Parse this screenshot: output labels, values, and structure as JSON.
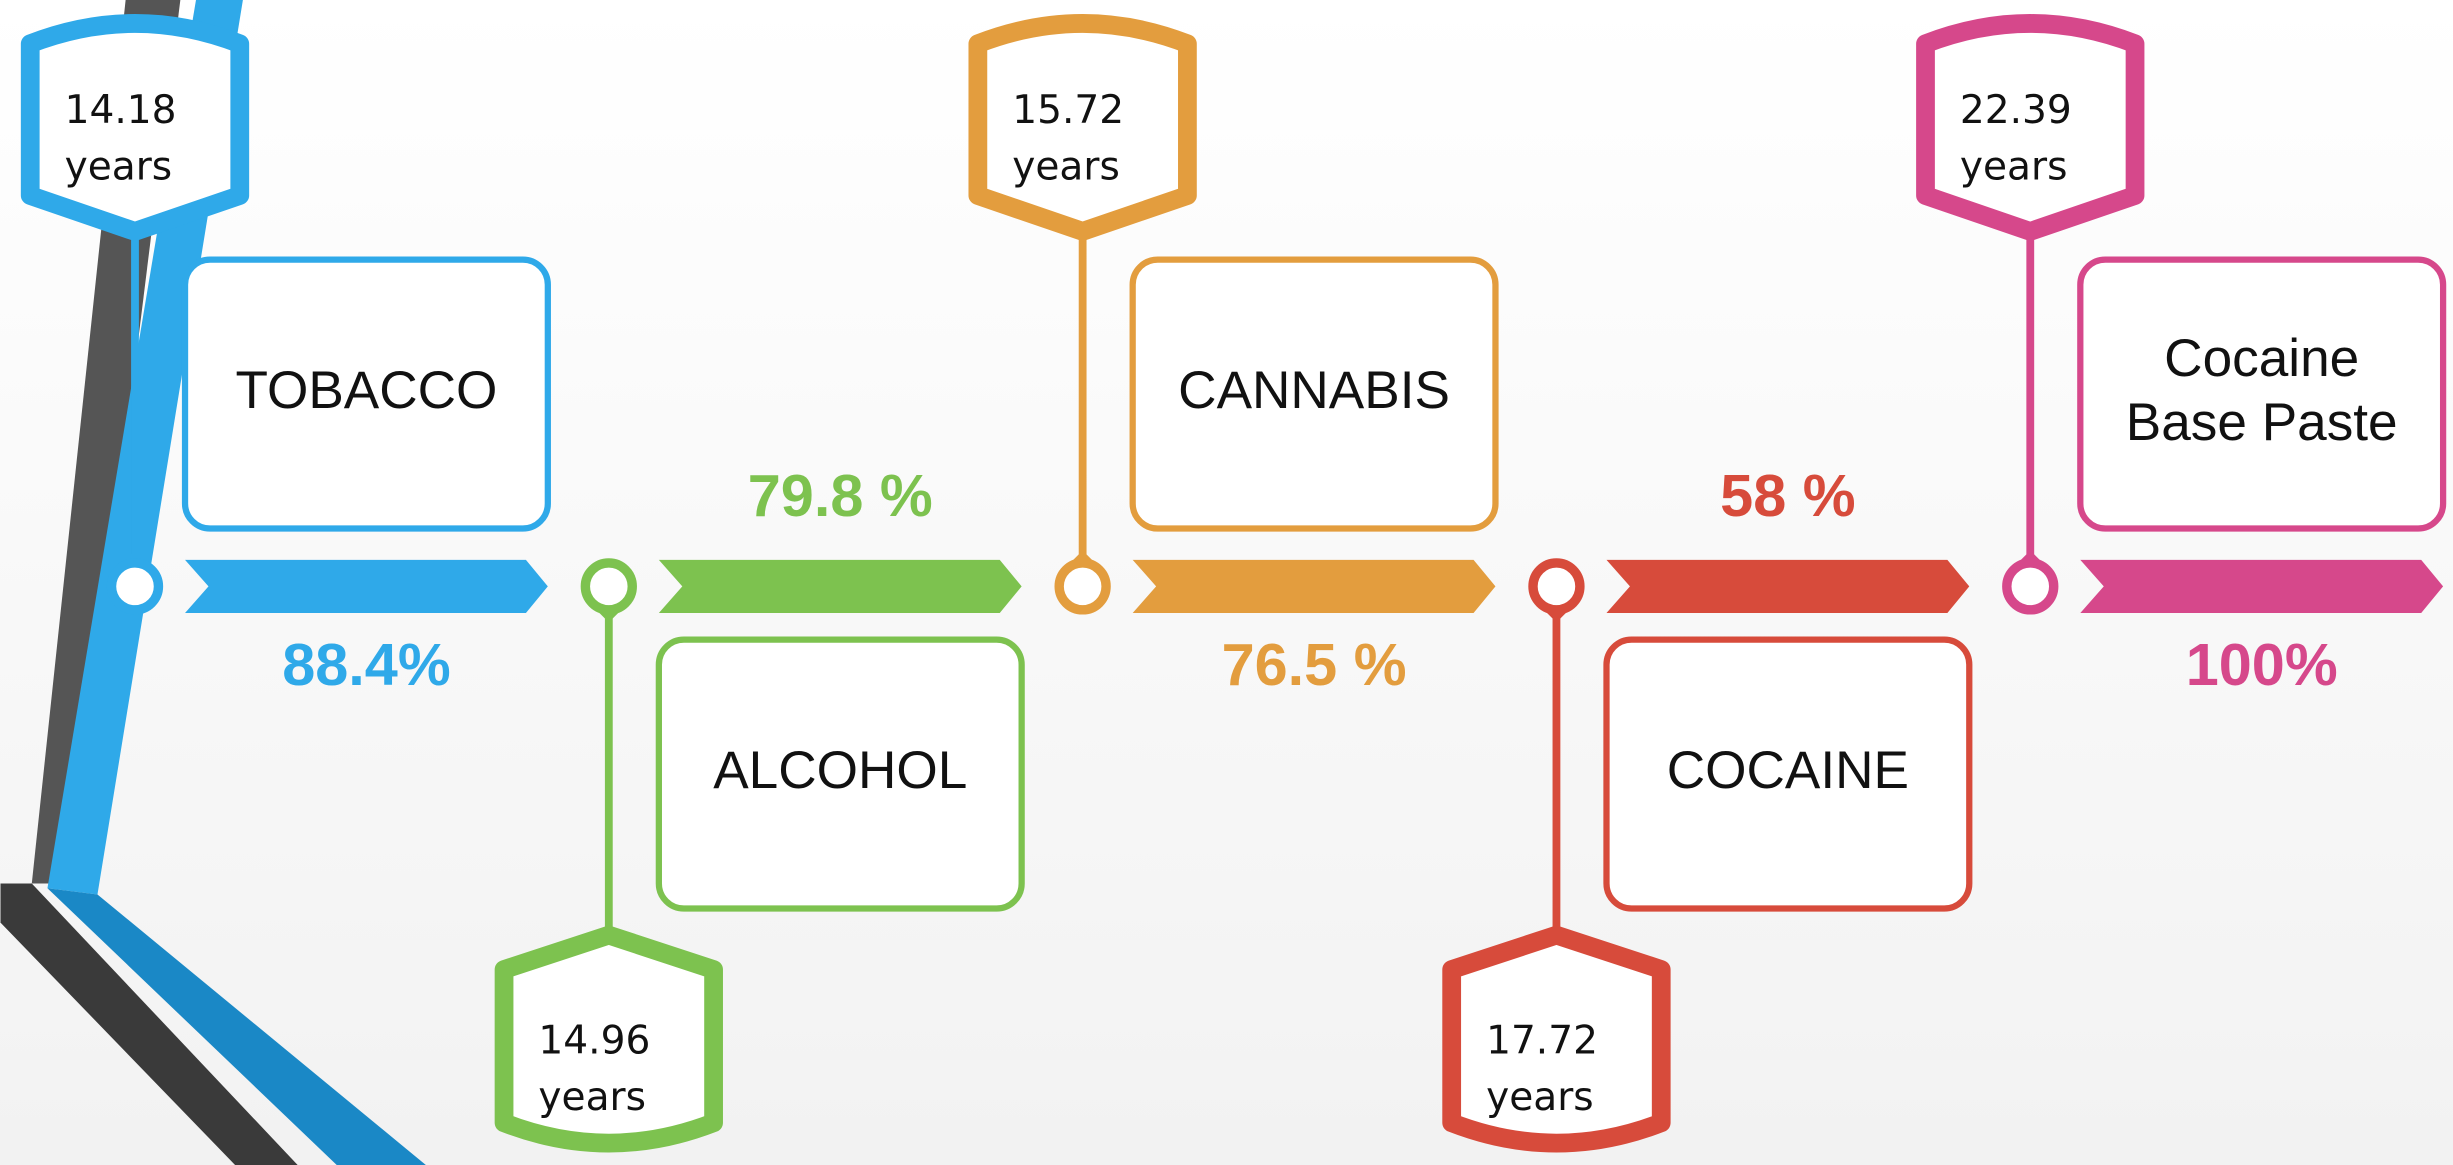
{
  "items": [
    {
      "label": [
        "TOBACCO"
      ],
      "percent": "88.4%",
      "age": "14.18",
      "unit": "years",
      "color": "#2fa9e9"
    },
    {
      "label": [
        "ALCOHOL"
      ],
      "percent": "79.8 %",
      "age": "14.96",
      "unit": "years",
      "color": "#7dc24f"
    },
    {
      "label": [
        "CANNABIS"
      ],
      "percent": "76.5 %",
      "age": "15.72",
      "unit": "years",
      "color": "#e39d3e"
    },
    {
      "label": [
        "COCAINE"
      ],
      "percent": "58 %",
      "age": "17.72",
      "unit": "years",
      "color": "#d74b3b"
    },
    {
      "label": [
        "Cocaine",
        "Base Paste"
      ],
      "percent": "100%",
      "age": "22.39",
      "unit": "years",
      "color": "#d6488b"
    }
  ]
}
